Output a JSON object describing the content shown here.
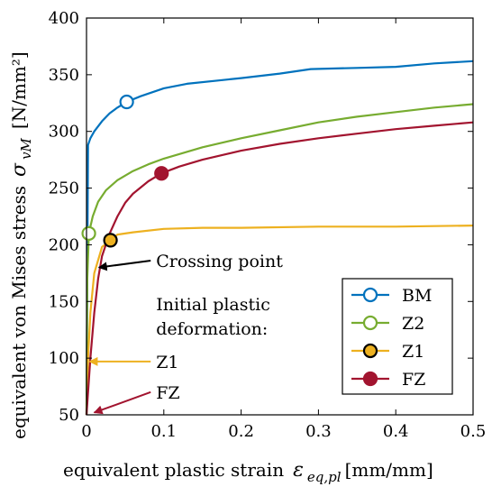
{
  "chart_data": {
    "type": "line",
    "xlabel": "equivalent plastic strain",
    "xlabel_symbol": "ε",
    "xlabel_subscript": "eq,pl",
    "xlabel_unit": "[mm/mm]",
    "ylabel": "equivalent von Mises stress",
    "ylabel_symbol": "σ",
    "ylabel_subscript": "vM",
    "ylabel_unit": "[N/mm²]",
    "xlim": [
      0,
      0.5
    ],
    "ylim": [
      50,
      400
    ],
    "xticks": [
      "0",
      "0.1",
      "0.2",
      "0.3",
      "0.4",
      "0.5"
    ],
    "xtick_values": [
      0,
      0.1,
      0.2,
      0.3,
      0.4,
      0.5
    ],
    "yticks": [
      "50",
      "100",
      "150",
      "200",
      "250",
      "300",
      "350",
      "400"
    ],
    "ytick_values": [
      50,
      100,
      150,
      200,
      250,
      300,
      350,
      400
    ],
    "grid": false,
    "legend_position": "bottom-right",
    "series": [
      {
        "name": "BM",
        "color": "#0072BD",
        "marker": "open-circle",
        "marker_point": [
          0.052,
          326
        ],
        "x": [
          0,
          0.002,
          0.005,
          0.01,
          0.02,
          0.03,
          0.04,
          0.052,
          0.07,
          0.1,
          0.13,
          0.2,
          0.25,
          0.29,
          0.35,
          0.4,
          0.45,
          0.5
        ],
        "y": [
          50,
          288,
          294,
          300,
          309,
          316,
          321,
          326,
          331,
          338,
          342,
          347,
          351,
          355,
          356,
          357,
          360,
          362
        ]
      },
      {
        "name": "Z2",
        "color": "#77AC30",
        "marker": "open-circle",
        "marker_point": [
          0.003,
          210
        ],
        "x": [
          0,
          0.001,
          0.003,
          0.008,
          0.015,
          0.025,
          0.04,
          0.06,
          0.08,
          0.1,
          0.15,
          0.2,
          0.25,
          0.3,
          0.35,
          0.4,
          0.45,
          0.5
        ],
        "y": [
          50,
          170,
          210,
          225,
          238,
          248,
          257,
          265,
          271,
          276,
          286,
          294,
          301,
          308,
          313,
          317,
          321,
          324
        ]
      },
      {
        "name": "Z1",
        "color": "#EDB120",
        "marker": "filled-circle-black-edge",
        "marker_point": [
          0.031,
          204
        ],
        "x": [
          0,
          0.002,
          0.005,
          0.01,
          0.02,
          0.031,
          0.04,
          0.06,
          0.1,
          0.15,
          0.2,
          0.3,
          0.4,
          0.5
        ],
        "y": [
          50,
          100,
          140,
          175,
          198,
          204,
          209,
          211,
          214,
          215,
          215,
          216,
          216,
          217
        ]
      },
      {
        "name": "FZ",
        "color": "#A2142F",
        "marker": "filled-circle",
        "marker_point": [
          0.097,
          263
        ],
        "x": [
          0,
          0.005,
          0.01,
          0.015,
          0.02,
          0.03,
          0.04,
          0.05,
          0.06,
          0.08,
          0.097,
          0.12,
          0.15,
          0.2,
          0.25,
          0.3,
          0.35,
          0.4,
          0.45,
          0.5
        ],
        "y": [
          50,
          100,
          140,
          170,
          190,
          210,
          225,
          237,
          245,
          256,
          263,
          269,
          275,
          283,
          289,
          294,
          298,
          302,
          305,
          308
        ]
      }
    ],
    "annotations": [
      {
        "text": "Crossing point",
        "text_x": 0.09,
        "text_y": 186,
        "arrow_to": [
          0.016,
          180
        ],
        "arrow_color": "#000000"
      },
      {
        "text": "Initial plastic",
        "text_x": 0.09,
        "text_y": 148,
        "line2": "deformation:"
      },
      {
        "text": "Z1",
        "text_x": 0.09,
        "text_y": 97,
        "arrow_to": [
          0.004,
          97
        ],
        "arrow_color": "#EDB120"
      },
      {
        "text": "FZ",
        "text_x": 0.09,
        "text_y": 70,
        "arrow_to": [
          0.01,
          52
        ],
        "arrow_color": "#A2142F"
      }
    ]
  }
}
